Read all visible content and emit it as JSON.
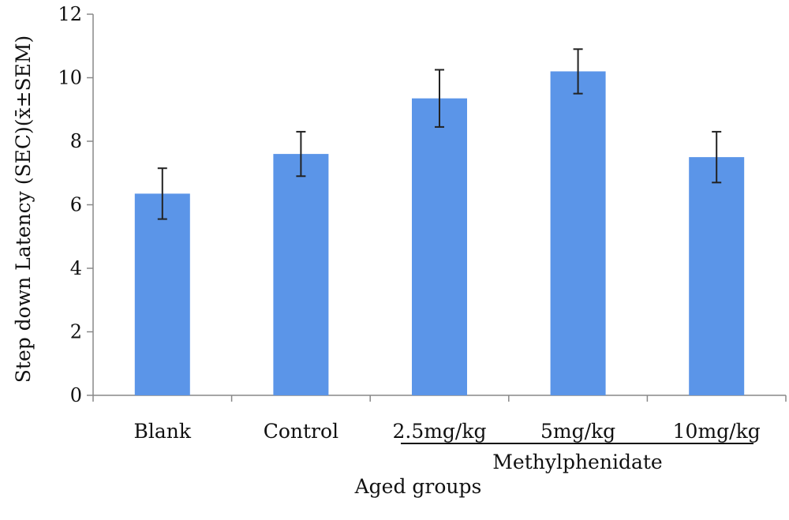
{
  "chart_data": {
    "type": "bar",
    "title": "",
    "xlabel": "Aged groups",
    "ylabel": "Step down Latency (SEC)(x̄±SEM)",
    "ylim": [
      0,
      12
    ],
    "yticks": [
      0,
      2,
      4,
      6,
      8,
      10,
      12
    ],
    "categories": [
      "Blank",
      "Control",
      "2.5mg/kg",
      "5mg/kg",
      "10mg/kg"
    ],
    "values": [
      6.35,
      7.6,
      9.35,
      10.2,
      7.5
    ],
    "errors": [
      0.8,
      0.7,
      0.9,
      0.7,
      0.8
    ],
    "group": {
      "label": "Methylphenidate",
      "categories": [
        "2.5mg/kg",
        "5mg/kg",
        "10mg/kg"
      ]
    },
    "grid": false,
    "bar_color": "#5b95e8"
  }
}
